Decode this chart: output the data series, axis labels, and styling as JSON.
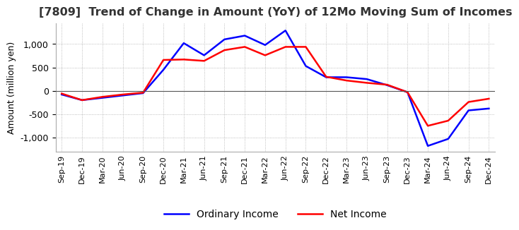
{
  "title": "[7809]  Trend of Change in Amount (YoY) of 12Mo Moving Sum of Incomes",
  "ylabel": "Amount (million yen)",
  "xlabels": [
    "Sep-19",
    "Dec-19",
    "Mar-20",
    "Jun-20",
    "Sep-20",
    "Dec-20",
    "Mar-21",
    "Jun-21",
    "Sep-21",
    "Dec-21",
    "Mar-22",
    "Jun-22",
    "Sep-22",
    "Dec-22",
    "Mar-23",
    "Jun-23",
    "Sep-23",
    "Dec-23",
    "Mar-24",
    "Jun-24",
    "Sep-24",
    "Dec-24"
  ],
  "ordinary_income": [
    -80,
    -200,
    -150,
    -100,
    -50,
    450,
    1020,
    760,
    1100,
    1180,
    980,
    1290,
    530,
    290,
    290,
    250,
    120,
    -30,
    -1180,
    -1030,
    -420,
    -380
  ],
  "net_income": [
    -60,
    -200,
    -130,
    -80,
    -40,
    660,
    670,
    640,
    870,
    940,
    760,
    940,
    940,
    300,
    220,
    170,
    130,
    -30,
    -750,
    -640,
    -240,
    -170
  ],
  "ordinary_income_color": "#0000ff",
  "net_income_color": "#ff0000",
  "ylim": [
    -1300,
    1450
  ],
  "yticks": [
    -1000,
    -500,
    0,
    500,
    1000
  ],
  "background_color": "#ffffff",
  "grid_color": "#aaaaaa",
  "grid_linestyle": ":",
  "linewidth": 1.8
}
